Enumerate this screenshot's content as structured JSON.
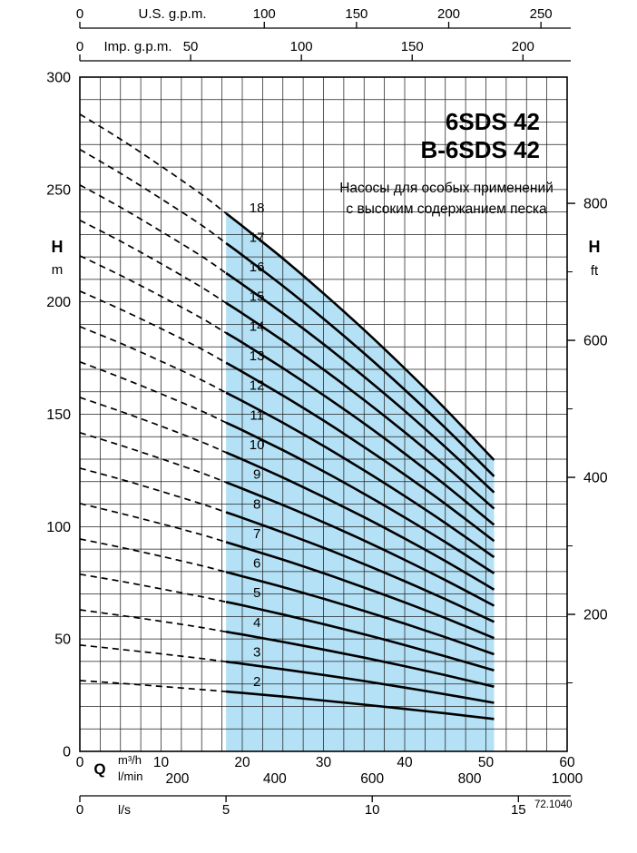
{
  "title": {
    "line1": "6SDS 42",
    "line2": "B-6SDS 42"
  },
  "subtitle_ru": {
    "line1": "Насосы для особых применений",
    "line2": "с высоким содержанием песка"
  },
  "code": "72.1040",
  "colors": {
    "shade": "#b5e1f6",
    "line": "#000000"
  },
  "axes": {
    "y_left": {
      "title": "H",
      "unit": "m",
      "min": 0,
      "max": 300,
      "ticks": [
        300,
        250,
        200,
        150,
        100,
        50,
        0
      ],
      "grid_step_m": 10
    },
    "y_right": {
      "title": "H",
      "unit": "ft",
      "ticks": [
        800,
        600,
        400,
        200
      ],
      "minor_step_ft": 100,
      "m_per_ft": 0.3048
    },
    "x_m3h": {
      "title": "Q",
      "unit_1": "m³/h",
      "unit_2": "l/min",
      "min": 0,
      "max": 60,
      "ticks": [
        0,
        10,
        20,
        30,
        40,
        50,
        60
      ],
      "grid_step_m3h": 2.5
    },
    "x_lmin": {
      "ticks": [
        200,
        400,
        600,
        800,
        1000
      ],
      "m3h_per_lmin": 0.06
    },
    "x_ls": {
      "label": "l/s",
      "ticks": [
        0,
        5,
        10,
        15
      ],
      "m3h_per_ls": 3.6
    },
    "x_usgpm": {
      "label": "U.S. g.p.m.",
      "ticks": [
        0,
        100,
        150,
        200,
        250
      ],
      "m3h_per_usgpm": 0.2271
    },
    "x_impgpm": {
      "label": "Imp. g.p.m.",
      "ticks": [
        0,
        50,
        100,
        150,
        200
      ],
      "m3h_per_impgpm": 0.2728
    }
  },
  "chart_data": {
    "type": "line",
    "title": "6SDS 42 / B-6SDS 42 submersible pump performance curves (number of stages 2–18)",
    "xlabel": "Q (m³/h)",
    "ylabel": "H (m)",
    "xlim": [
      0,
      60
    ],
    "ylim": [
      0,
      300
    ],
    "grid": true,
    "q_m3h": [
      0,
      5,
      10,
      15,
      18,
      20,
      25,
      30,
      35,
      40,
      45,
      51
    ],
    "dashed_until_q": 18,
    "shaded_region_q": [
      18,
      51
    ],
    "series": [
      {
        "stages": "2",
        "h_m": [
          31.5,
          30.3,
          28.9,
          27.5,
          26.6,
          26.0,
          24.4,
          22.6,
          20.8,
          18.9,
          16.9,
          14.4
        ]
      },
      {
        "stages": "3",
        "h_m": [
          47.3,
          45.4,
          43.4,
          41.3,
          39.9,
          39.0,
          36.5,
          34.0,
          31.3,
          28.4,
          25.4,
          21.6
        ]
      },
      {
        "stages": "4",
        "h_m": [
          63.0,
          60.5,
          57.9,
          55.1,
          53.2,
          52.0,
          48.7,
          45.3,
          41.7,
          37.9,
          33.9,
          28.8
        ]
      },
      {
        "stages": "5",
        "h_m": [
          78.8,
          75.7,
          72.3,
          68.8,
          66.5,
          65.0,
          60.9,
          56.6,
          52.1,
          47.3,
          42.3,
          36.0
        ]
      },
      {
        "stages": "6",
        "h_m": [
          94.5,
          90.8,
          86.8,
          82.6,
          79.8,
          77.9,
          73.1,
          67.9,
          62.5,
          56.8,
          50.8,
          43.2
        ]
      },
      {
        "stages": "7",
        "h_m": [
          110.3,
          105.9,
          101.3,
          96.4,
          93.1,
          90.9,
          85.3,
          79.3,
          72.9,
          66.3,
          59.3,
          50.4
        ]
      },
      {
        "stages": "8",
        "h_m": [
          126.0,
          121.1,
          115.7,
          110.1,
          106.4,
          103.9,
          97.4,
          90.6,
          83.3,
          75.7,
          67.7,
          57.6
        ]
      },
      {
        "stages": "9",
        "h_m": [
          141.8,
          136.2,
          130.2,
          123.9,
          119.7,
          116.9,
          109.6,
          101.9,
          93.8,
          85.2,
          76.2,
          64.8
        ]
      },
      {
        "stages": "10",
        "h_m": [
          157.5,
          151.3,
          144.7,
          137.7,
          133.0,
          129.9,
          121.8,
          113.2,
          104.2,
          94.7,
          84.7,
          72.0
        ]
      },
      {
        "stages": "11",
        "h_m": [
          173.3,
          166.4,
          159.1,
          151.4,
          146.3,
          142.9,
          134.0,
          124.6,
          114.6,
          104.1,
          93.1,
          79.2
        ]
      },
      {
        "stages": "12",
        "h_m": [
          189.0,
          181.6,
          173.6,
          165.2,
          159.6,
          155.9,
          146.2,
          135.9,
          125.0,
          113.6,
          101.6,
          86.4
        ]
      },
      {
        "stages": "13",
        "h_m": [
          204.8,
          196.7,
          188.1,
          179.0,
          172.9,
          168.9,
          158.3,
          147.2,
          135.4,
          123.1,
          110.1,
          93.6
        ]
      },
      {
        "stages": "14",
        "h_m": [
          220.5,
          211.8,
          202.5,
          192.7,
          186.2,
          181.9,
          170.5,
          158.5,
          145.9,
          132.5,
          118.5,
          100.8
        ]
      },
      {
        "stages": "15",
        "h_m": [
          236.3,
          227.0,
          217.0,
          206.5,
          199.5,
          194.9,
          182.7,
          169.9,
          156.3,
          142.0,
          127.0,
          108.0
        ]
      },
      {
        "stages": "16",
        "h_m": [
          252.0,
          242.1,
          231.4,
          220.3,
          212.8,
          207.8,
          194.9,
          181.2,
          166.7,
          151.5,
          135.4,
          115.2
        ]
      },
      {
        "stages": "17",
        "h_m": [
          267.8,
          257.2,
          245.9,
          234.1,
          226.1,
          220.8,
          207.1,
          192.5,
          177.1,
          160.9,
          143.9,
          122.4
        ]
      },
      {
        "stages": "18",
        "h_m": [
          283.5,
          272.4,
          260.4,
          247.8,
          239.4,
          233.8,
          219.3,
          203.8,
          187.5,
          170.4,
          152.4,
          129.6
        ]
      }
    ]
  }
}
